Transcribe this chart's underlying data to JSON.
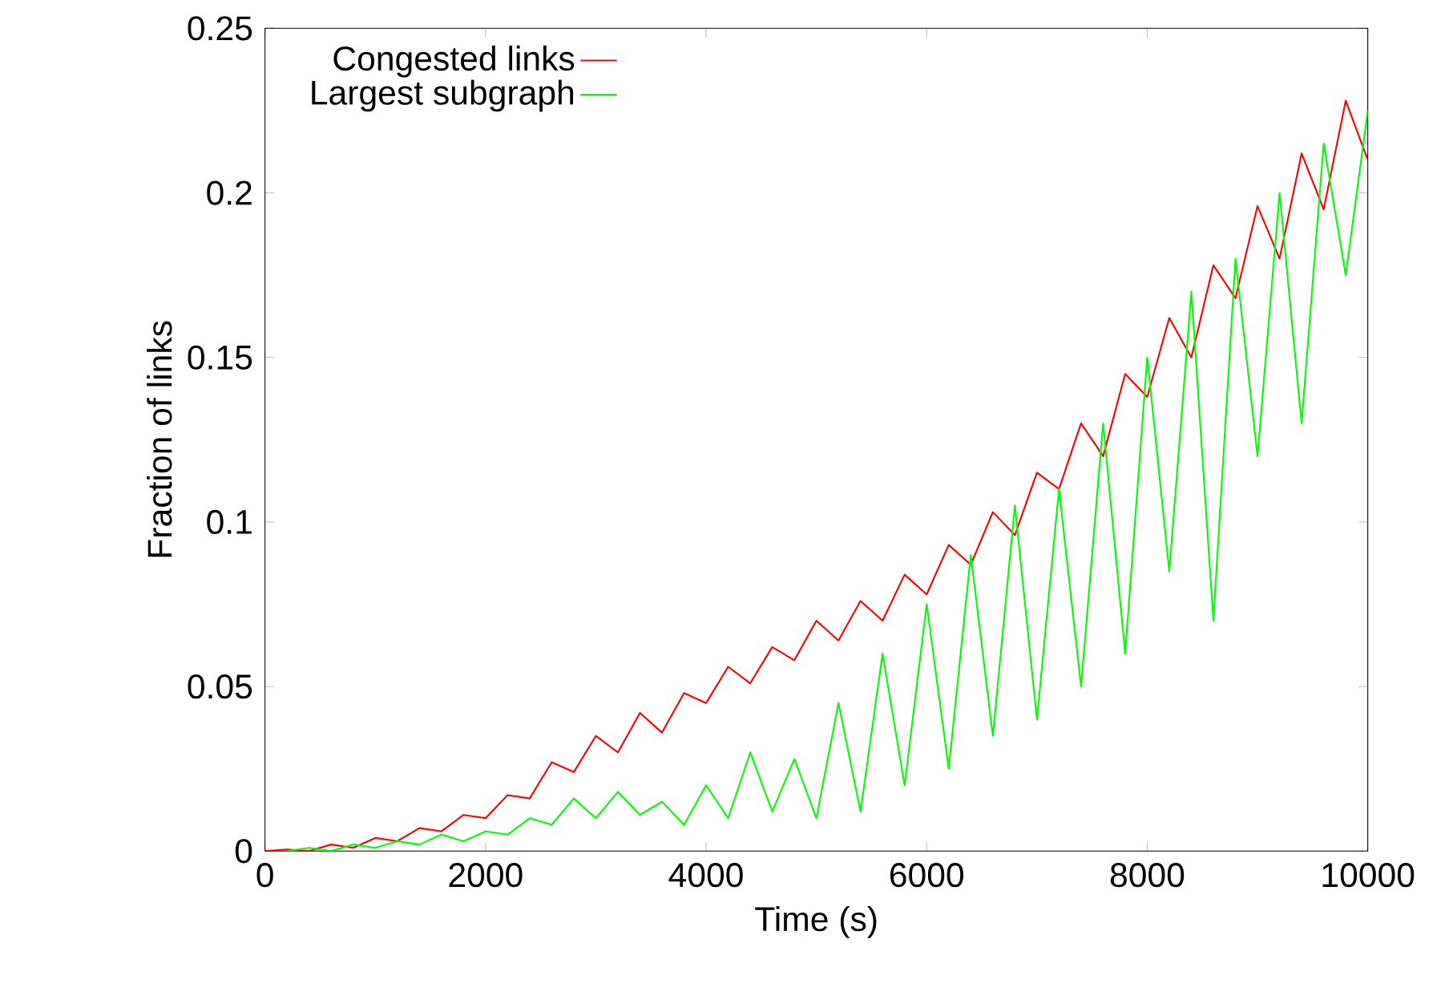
{
  "chart_data": {
    "type": "line",
    "xlabel": "Time (s)",
    "ylabel": "Fraction of links",
    "xlim": [
      0,
      10000
    ],
    "ylim": [
      0,
      0.25
    ],
    "xticks": [
      0,
      2000,
      4000,
      6000,
      8000,
      10000
    ],
    "yticks": [
      0,
      0.05,
      0.1,
      0.15,
      0.2,
      0.25
    ],
    "grid": false,
    "legend": "top left",
    "line_style": "solid",
    "marker": "none",
    "x": [
      0,
      200,
      400,
      600,
      800,
      1000,
      1200,
      1400,
      1600,
      1800,
      2000,
      2200,
      2400,
      2600,
      2800,
      3000,
      3200,
      3400,
      3600,
      3800,
      4000,
      4200,
      4400,
      4600,
      4800,
      5000,
      5200,
      5400,
      5600,
      5800,
      6000,
      6200,
      6400,
      6600,
      6800,
      7000,
      7200,
      7400,
      7600,
      7800,
      8000,
      8200,
      8400,
      8600,
      8800,
      9000,
      9200,
      9400,
      9600,
      9800,
      10000
    ],
    "series": [
      {
        "name": "Congested links",
        "color": "#ff0000",
        "values": [
          0,
          0.0005,
          0,
          0.002,
          0.001,
          0.004,
          0.003,
          0.007,
          0.006,
          0.011,
          0.01,
          0.017,
          0.016,
          0.027,
          0.024,
          0.035,
          0.03,
          0.042,
          0.036,
          0.048,
          0.045,
          0.056,
          0.051,
          0.062,
          0.058,
          0.07,
          0.064,
          0.076,
          0.07,
          0.084,
          0.078,
          0.093,
          0.087,
          0.103,
          0.096,
          0.115,
          0.11,
          0.13,
          0.12,
          0.145,
          0.138,
          0.162,
          0.15,
          0.178,
          0.168,
          0.196,
          0.18,
          0.212,
          0.195,
          0.228,
          0.21
        ]
      },
      {
        "name": "Largest subgraph",
        "color": "#00ff00",
        "values": [
          null,
          0,
          0.001,
          0,
          0.002,
          0.001,
          0.003,
          0.002,
          0.005,
          0.003,
          0.006,
          0.005,
          0.01,
          0.008,
          0.016,
          0.01,
          0.018,
          0.011,
          0.015,
          0.008,
          0.02,
          0.01,
          0.03,
          0.012,
          0.028,
          0.01,
          0.045,
          0.012,
          0.06,
          0.02,
          0.075,
          0.025,
          0.09,
          0.035,
          0.105,
          0.04,
          0.11,
          0.05,
          0.13,
          0.06,
          0.15,
          0.085,
          0.17,
          0.07,
          0.18,
          0.12,
          0.2,
          0.13,
          0.215,
          0.175,
          0.225
        ]
      }
    ]
  }
}
